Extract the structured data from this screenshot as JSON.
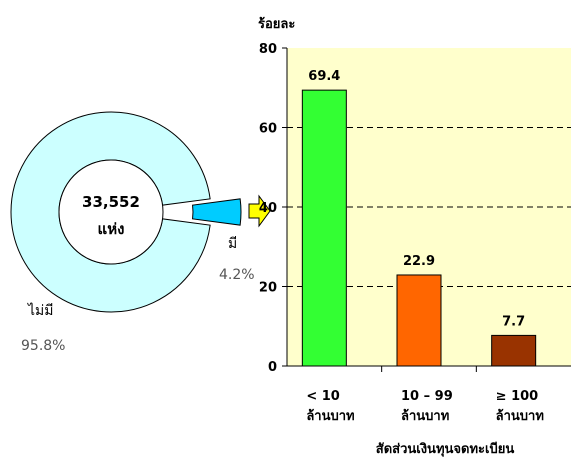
{
  "chart_data": [
    {
      "type": "pie",
      "center_label": [
        "33,552",
        "แห่ง"
      ],
      "slices": [
        {
          "label": "ไม่มี",
          "value": 95.8,
          "value_label": "95.8%",
          "color": "#ccffff"
        },
        {
          "label": "มี",
          "value": 4.2,
          "value_label": "4.2%",
          "color": "#00ccff"
        }
      ],
      "style": "doughnut, small slice exploded"
    },
    {
      "type": "bar",
      "ylabel": "ร้อยละ",
      "xlabel": "สัดส่วนเงินทุนจดทะเบียน",
      "categories": [
        [
          "< 10",
          "ล้านบาท"
        ],
        [
          "10 – 99",
          "ล้านบาท"
        ],
        [
          "≥ 100",
          "ล้านบาท"
        ]
      ],
      "values": [
        69.4,
        22.9,
        7.7
      ],
      "value_labels": [
        "69.4",
        "22.9",
        "7.7"
      ],
      "colors": [
        "#33ff33",
        "#ff6600",
        "#993300"
      ],
      "ylim": [
        0,
        80
      ],
      "yticks": [
        "0",
        "20",
        "40",
        "60",
        "80"
      ],
      "grid": "dashed horizontal",
      "background": "#ffffcc"
    }
  ],
  "connector_arrow_color": "#ffff00"
}
